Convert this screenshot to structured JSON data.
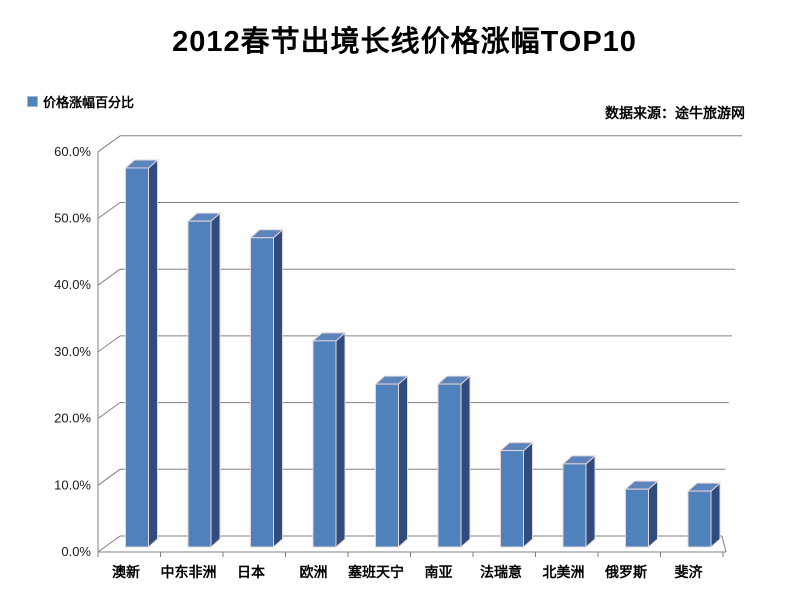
{
  "title": "2012春节出境长线价格涨幅TOP10",
  "legend": {
    "label": "价格涨幅百分比",
    "marker_color": "#4F81BD"
  },
  "source_note": "数据来源：途牛旅游网",
  "chart_data": {
    "type": "bar",
    "style": "3d-column",
    "title": "2012春节出境长线价格涨幅TOP10",
    "categories": [
      "澳新",
      "中东非洲",
      "日本",
      "欧洲",
      "塞班天宁",
      "南亚",
      "法瑞意",
      "北美洲",
      "俄罗斯",
      "斐济"
    ],
    "series": [
      {
        "name": "价格涨幅百分比",
        "values": [
          57,
          49,
          46.5,
          31,
          24.5,
          24.5,
          14.5,
          12.5,
          8.7,
          8.4
        ]
      }
    ],
    "xlabel": "",
    "ylabel": "",
    "ylim": [
      0,
      60
    ],
    "ytick_step": 10,
    "ytick_labels": [
      "0.0%",
      "10.0%",
      "20.0%",
      "30.0%",
      "40.0%",
      "50.0%",
      "60.0%"
    ],
    "grid": true,
    "legend_position": "top-left",
    "colors": {
      "bar_front": "#4F81BD",
      "bar_side": "#2E4D7E",
      "bar_top": "#5C85BE",
      "bar_outline": "#E8D5D5",
      "axis": "#808080",
      "tick_text": "#1a1a1a"
    }
  }
}
